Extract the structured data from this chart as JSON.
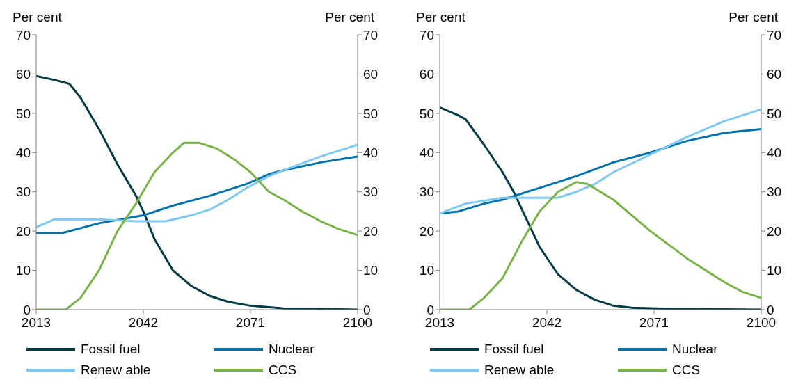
{
  "chart_data": [
    {
      "type": "line",
      "ylabel": "Per cent",
      "y2label": "Per cent",
      "xlim": [
        2013,
        2100
      ],
      "xticks": [
        2013,
        2042,
        2071,
        2100
      ],
      "ylim": [
        0,
        70
      ],
      "yticks": [
        0,
        10,
        20,
        30,
        40,
        50,
        60,
        70
      ],
      "y2lim": [
        0,
        70
      ],
      "y2ticks": [
        0,
        10,
        20,
        30,
        40,
        50,
        60,
        70
      ],
      "legend": "bottom",
      "marker": "none",
      "line_style": "solid",
      "series": [
        {
          "name": "Fossil fuel",
          "color": "#003a45",
          "x": [
            2013,
            2018,
            2022,
            2025,
            2030,
            2035,
            2040,
            2042,
            2045,
            2050,
            2055,
            2060,
            2065,
            2071,
            2080,
            2090,
            2100
          ],
          "values": [
            59.5,
            58.5,
            57.5,
            54,
            46,
            37,
            29,
            25,
            18,
            10,
            6,
            3.5,
            2,
            1,
            0.3,
            0.2,
            0
          ]
        },
        {
          "name": "Nuclear",
          "color": "#0072aa",
          "x": [
            2013,
            2020,
            2030,
            2042,
            2050,
            2060,
            2070,
            2076,
            2080,
            2090,
            2100
          ],
          "values": [
            19.5,
            19.5,
            22,
            24,
            26.5,
            29,
            32,
            34.5,
            35.5,
            37.5,
            39
          ]
        },
        {
          "name": "Renew able",
          "color": "#7ec8f2",
          "x": [
            2013,
            2018,
            2030,
            2040,
            2048,
            2055,
            2060,
            2065,
            2070,
            2076,
            2080,
            2090,
            2100
          ],
          "values": [
            21,
            23,
            23,
            22.5,
            22.5,
            24,
            25.5,
            28,
            31,
            34,
            35.5,
            39,
            42
          ]
        },
        {
          "name": "CCS",
          "color": "#7ab24a",
          "x": [
            2013,
            2021,
            2025,
            2030,
            2035,
            2040,
            2045,
            2050,
            2053,
            2057,
            2062,
            2067,
            2071,
            2076,
            2080,
            2085,
            2090,
            2095,
            2100
          ],
          "values": [
            0,
            0,
            3,
            10,
            20,
            27,
            35,
            40,
            42.5,
            42.5,
            41,
            38,
            35,
            30,
            28,
            25,
            22.5,
            20.5,
            19
          ]
        }
      ]
    },
    {
      "type": "line",
      "ylabel": "Per cent",
      "y2label": "Per cent",
      "xlim": [
        2013,
        2100
      ],
      "xticks": [
        2013,
        2042,
        2071,
        2100
      ],
      "ylim": [
        0,
        70
      ],
      "yticks": [
        0,
        10,
        20,
        30,
        40,
        50,
        60,
        70
      ],
      "y2lim": [
        0,
        70
      ],
      "y2ticks": [
        0,
        10,
        20,
        30,
        40,
        50,
        60,
        70
      ],
      "legend": "bottom",
      "marker": "none",
      "line_style": "solid",
      "series": [
        {
          "name": "Fossil fuel",
          "color": "#003a45",
          "x": [
            2013,
            2018,
            2020,
            2025,
            2030,
            2033,
            2036,
            2040,
            2045,
            2050,
            2055,
            2060,
            2065,
            2075,
            2100
          ],
          "values": [
            51.5,
            49.5,
            48.5,
            42,
            35,
            30,
            24,
            16,
            9,
            5,
            2.5,
            1,
            0.5,
            0.2,
            0
          ]
        },
        {
          "name": "Nuclear",
          "color": "#0072aa",
          "x": [
            2013,
            2018,
            2025,
            2030,
            2040,
            2050,
            2060,
            2070,
            2080,
            2090,
            2100
          ],
          "values": [
            24.5,
            25,
            27,
            28,
            31,
            34,
            37.5,
            40,
            43,
            45,
            46
          ]
        },
        {
          "name": "Renew able",
          "color": "#7ec8f2",
          "x": [
            2013,
            2020,
            2030,
            2045,
            2050,
            2055,
            2060,
            2070,
            2080,
            2090,
            2100
          ],
          "values": [
            24.5,
            27,
            28.5,
            28.5,
            30,
            32,
            35,
            39.5,
            44,
            48,
            51
          ]
        },
        {
          "name": "CCS",
          "color": "#7ab24a",
          "x": [
            2013,
            2021,
            2025,
            2030,
            2035,
            2040,
            2045,
            2050,
            2053,
            2060,
            2070,
            2080,
            2090,
            2095,
            2100
          ],
          "values": [
            0,
            0,
            3,
            8,
            17,
            25,
            30,
            32.5,
            32,
            28,
            20,
            13,
            7,
            4.5,
            3
          ]
        }
      ]
    }
  ]
}
